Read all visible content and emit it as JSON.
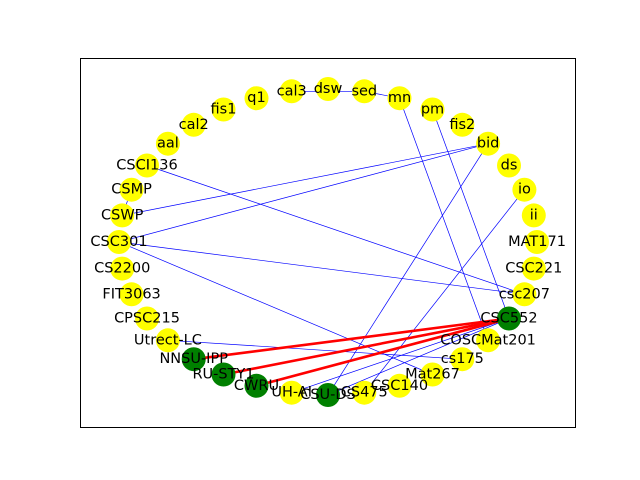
{
  "colors": {
    "background": "#ffffff",
    "frame": "#000000",
    "node_default": "#ffff00",
    "node_highlight": "#008000",
    "edge_default": "#0000ff",
    "edge_highlight": "#ff0000",
    "label": "#000000"
  },
  "graph": {
    "layout": "circular",
    "nodes": [
      {
        "id": "dsw",
        "label": "dsw",
        "highlight": false
      },
      {
        "id": "cal3",
        "label": "cal3",
        "highlight": false
      },
      {
        "id": "q1",
        "label": "q1",
        "highlight": false
      },
      {
        "id": "fis1",
        "label": "fis1",
        "highlight": false
      },
      {
        "id": "cal2",
        "label": "cal2",
        "highlight": false
      },
      {
        "id": "aal",
        "label": "aal",
        "highlight": false
      },
      {
        "id": "CSCI136",
        "label": "CSCI136",
        "highlight": false
      },
      {
        "id": "CSMP",
        "label": "CSMP",
        "highlight": false
      },
      {
        "id": "CSWP",
        "label": "CSWP",
        "highlight": false
      },
      {
        "id": "CSC301",
        "label": "CSC301",
        "highlight": false
      },
      {
        "id": "CS2200",
        "label": "CS2200",
        "highlight": false
      },
      {
        "id": "FIT3063",
        "label": "FIT3063",
        "highlight": false
      },
      {
        "id": "CPSC215",
        "label": "CPSC215",
        "highlight": false
      },
      {
        "id": "Utrect-LC",
        "label": "Utrect-LC",
        "highlight": false
      },
      {
        "id": "NNSU-IPP",
        "label": "NNSU-IPP",
        "highlight": true
      },
      {
        "id": "RU-STY1",
        "label": "RU-STY1",
        "highlight": true
      },
      {
        "id": "CWRU",
        "label": "CWRU",
        "highlight": true
      },
      {
        "id": "UH-AI",
        "label": "UH-AI",
        "highlight": false
      },
      {
        "id": "CSU-DS",
        "label": "CSU-DS",
        "highlight": true
      },
      {
        "id": "CS475",
        "label": "CS475",
        "highlight": false
      },
      {
        "id": "CSC140",
        "label": "CSC140",
        "highlight": false
      },
      {
        "id": "Mat267",
        "label": "Mat267",
        "highlight": false
      },
      {
        "id": "cs175",
        "label": "cs175",
        "highlight": false
      },
      {
        "id": "COSCMat201",
        "label": "COSCMat201",
        "highlight": false
      },
      {
        "id": "CSC552",
        "label": "CSC552",
        "highlight": true
      },
      {
        "id": "csc207",
        "label": "csc207",
        "highlight": false
      },
      {
        "id": "CSC221",
        "label": "CSC221",
        "highlight": false
      },
      {
        "id": "MAT171",
        "label": "MAT171",
        "highlight": false
      },
      {
        "id": "ii",
        "label": "ii",
        "highlight": false
      },
      {
        "id": "io",
        "label": "io",
        "highlight": false
      },
      {
        "id": "ds",
        "label": "ds",
        "highlight": false
      },
      {
        "id": "bid",
        "label": "bid",
        "highlight": false
      },
      {
        "id": "fis2",
        "label": "fis2",
        "highlight": false
      },
      {
        "id": "pm",
        "label": "pm",
        "highlight": false
      },
      {
        "id": "mn",
        "label": "mn",
        "highlight": false
      },
      {
        "id": "sed",
        "label": "sed",
        "highlight": false
      }
    ],
    "edges": [
      {
        "source": "sed",
        "target": "cal3",
        "highlight": false
      },
      {
        "source": "mn",
        "target": "sed",
        "highlight": false
      },
      {
        "source": "mn",
        "target": "COSCMat201",
        "highlight": false
      },
      {
        "source": "pm",
        "target": "CSC552",
        "highlight": false
      },
      {
        "source": "bid",
        "target": "CSWP",
        "highlight": false
      },
      {
        "source": "bid",
        "target": "CSC301",
        "highlight": false
      },
      {
        "source": "bid",
        "target": "CSU-DS",
        "highlight": false
      },
      {
        "source": "io",
        "target": "CS475",
        "highlight": false
      },
      {
        "source": "csc207",
        "target": "CSCI136",
        "highlight": false
      },
      {
        "source": "csc207",
        "target": "CSC301",
        "highlight": false
      },
      {
        "source": "CSMP",
        "target": "CSWP",
        "highlight": false
      },
      {
        "source": "CSC301",
        "target": "Mat267",
        "highlight": false
      },
      {
        "source": "Utrect-LC",
        "target": "cs175",
        "highlight": false
      },
      {
        "source": "CSC552",
        "target": "UH-AI",
        "highlight": false
      },
      {
        "source": "CSC552",
        "target": "CSU-DS",
        "highlight": false
      },
      {
        "source": "CSC552",
        "target": "CWRU",
        "highlight": true
      },
      {
        "source": "CSC552",
        "target": "RU-STY1",
        "highlight": true
      },
      {
        "source": "CSC552",
        "target": "NNSU-IPP",
        "highlight": true
      }
    ]
  }
}
